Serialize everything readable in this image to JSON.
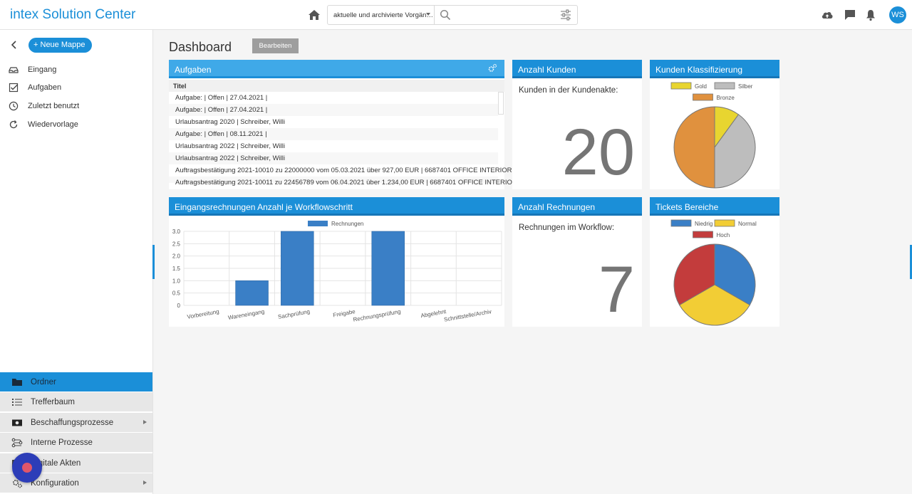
{
  "app": {
    "title": "intex Solution Center"
  },
  "search": {
    "scope": "aktuelle und archivierte Vorgän…",
    "placeholder": ""
  },
  "user": {
    "initials": "WS"
  },
  "sidebar": {
    "new_folder_label": "Neue Mappe",
    "items": [
      {
        "label": "Eingang",
        "icon": "inbox-icon"
      },
      {
        "label": "Aufgaben",
        "icon": "checkbox-icon"
      },
      {
        "label": "Zuletzt benutzt",
        "icon": "clock-icon"
      },
      {
        "label": "Wiedervorlage",
        "icon": "refresh-icon"
      }
    ],
    "bottom": [
      {
        "label": "Ordner",
        "icon": "folder-icon"
      },
      {
        "label": "Trefferbaum",
        "icon": "list-icon"
      },
      {
        "label": "Beschaffungsprozesse",
        "icon": "money-icon"
      },
      {
        "label": "Interne Prozesse",
        "icon": "process-icon"
      },
      {
        "label": "Digitale Akten",
        "icon": "archive-icon"
      },
      {
        "label": "Konfiguration",
        "icon": "gear-icon"
      }
    ]
  },
  "page": {
    "title": "Dashboard",
    "edit_label": "Bearbeiten"
  },
  "tasks": {
    "title": "Aufgaben",
    "column": "Titel",
    "rows": [
      "Aufgabe: | Offen | 27.04.2021 |",
      "Aufgabe: | Offen | 27.04.2021 |",
      "Urlaubsantrag 2020 | Schreiber, Willi",
      "Aufgabe: | Offen | 08.11.2021 |",
      "Urlaubsantrag 2022 | Schreiber, Willi",
      "Urlaubsantrag 2022 | Schreiber, Willi",
      "Auftragsbestätigung 2021-10010 zu 22000000 vom 05.03.2021 über 927,00 EUR | 6687401 OFFICE INTERIOR",
      "Auftragsbestätigung 2021-10011 zu 22456789 vom 06.04.2021 über 1.234,00 EUR | 6687401 OFFICE INTERIOR"
    ]
  },
  "kpi_customers": {
    "title": "Anzahl Kunden",
    "label": "Kunden in der Kundenakte:",
    "value": "20"
  },
  "kpi_invoices": {
    "title": "Anzahl Rechnungen",
    "label": "Rechnungen im Workflow:",
    "value": "7"
  },
  "colors": {
    "accent": "#1b8fd8"
  },
  "chart_data": [
    {
      "type": "bar",
      "title": "Eingangsrechnungen Anzahl je Workflowschritt",
      "categories": [
        "Vorbereitung",
        "Wareneingang",
        "Sachprüfung",
        "Freigabe",
        "Rechnungsprüfung",
        "Abgelehnt",
        "Schnittstelle/Archiv"
      ],
      "series": [
        {
          "name": "Rechnungen",
          "values": [
            0,
            1,
            3,
            0,
            3,
            0,
            0
          ],
          "color": "#3a7fc6"
        }
      ],
      "ylim": [
        0,
        3
      ],
      "yticks": [
        "3.0",
        "2.5",
        "2.0",
        "1.5",
        "1.0",
        "0.5",
        "0"
      ],
      "legend": "top-center",
      "grid": true
    },
    {
      "type": "pie",
      "title": "Kunden Klassifizierung",
      "series": [
        {
          "name": "Gold",
          "value": 2,
          "color": "#e8d530"
        },
        {
          "name": "Silber",
          "value": 8,
          "color": "#bdbdbd"
        },
        {
          "name": "Bronze",
          "value": 10,
          "color": "#e0913e"
        }
      ],
      "legend": "top"
    },
    {
      "type": "pie",
      "title": "Tickets Bereiche",
      "series": [
        {
          "name": "Niedrig",
          "value": 1,
          "color": "#3a7fc6"
        },
        {
          "name": "Normal",
          "value": 1,
          "color": "#f2cd35"
        },
        {
          "name": "Hoch",
          "value": 1,
          "color": "#c33c3c"
        }
      ],
      "legend": "top"
    }
  ]
}
